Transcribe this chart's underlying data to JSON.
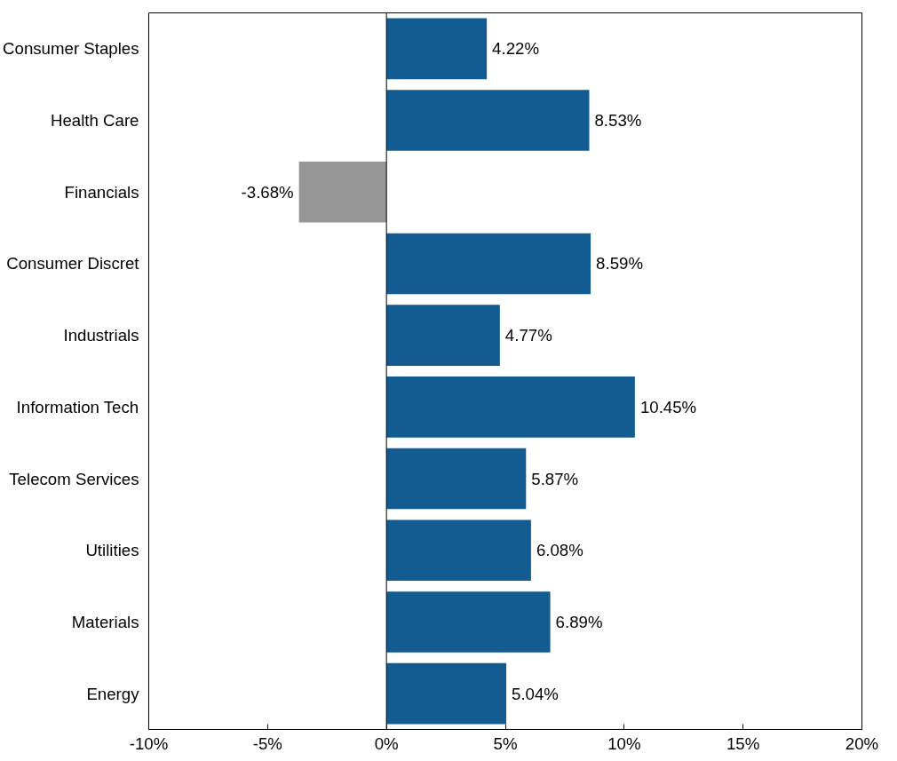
{
  "chart_data": {
    "type": "bar",
    "orientation": "horizontal",
    "categories": [
      "Consumer Staples",
      "Health Care",
      "Financials",
      "Consumer Discret",
      "Industrials",
      "Information Tech",
      "Telecom Services",
      "Utilities",
      "Materials",
      "Energy"
    ],
    "values": [
      4.22,
      8.53,
      -3.68,
      8.59,
      4.77,
      10.45,
      5.87,
      6.08,
      6.89,
      5.04
    ],
    "colors": [
      "#135c92",
      "#135c92",
      "#969696",
      "#135c92",
      "#135c92",
      "#135c92",
      "#135c92",
      "#135c92",
      "#135c92",
      "#135c92"
    ],
    "value_labels": [
      "4.22%",
      "8.53%",
      "-3.68%",
      "8.59%",
      "4.77%",
      "10.45%",
      "5.87%",
      "6.08%",
      "6.89%",
      "5.04%"
    ],
    "xlim": [
      -10,
      20
    ],
    "xticks": [
      {
        "value": -10,
        "label": "-10%"
      },
      {
        "value": -5,
        "label": "-5%"
      },
      {
        "value": 0,
        "label": "0%"
      },
      {
        "value": 5,
        "label": "5%"
      },
      {
        "value": 10,
        "label": "10%"
      },
      {
        "value": 15,
        "label": "15%"
      },
      {
        "value": 20,
        "label": "20%"
      }
    ],
    "xlabel": null
  }
}
